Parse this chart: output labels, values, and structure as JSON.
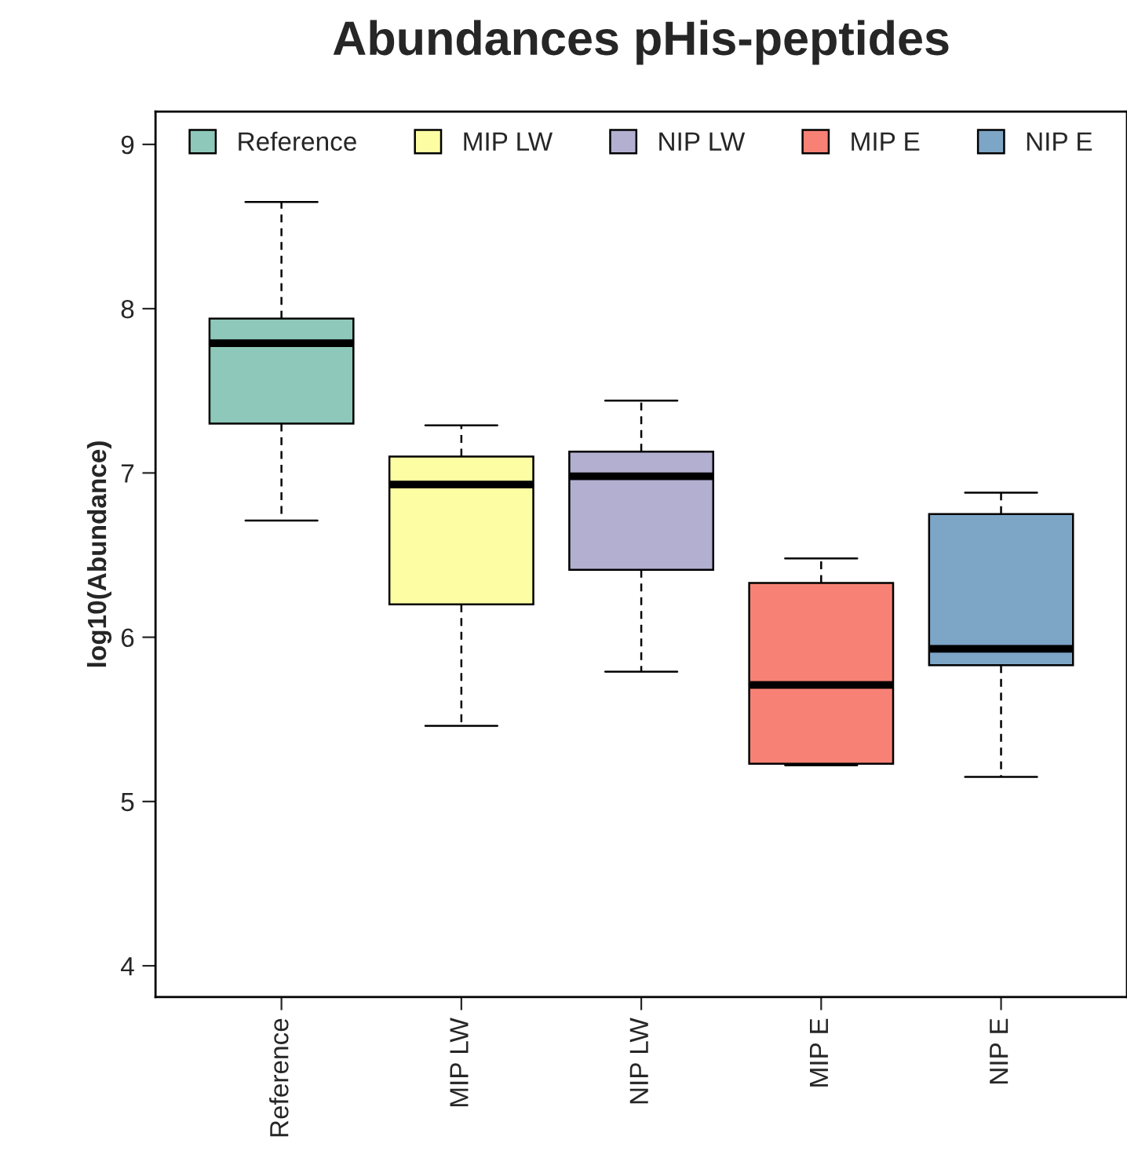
{
  "chart_data": {
    "type": "box",
    "title": "Abundances pHis-peptides",
    "ylabel": "log10(Abundance)",
    "categories": [
      "Reference",
      "MIP LW",
      "NIP LW",
      "MIP E",
      "NIP E"
    ],
    "series": [
      {
        "name": "Reference",
        "color": "#8dc8ba",
        "boxes": [
          {
            "low": 6.71,
            "q1": 7.3,
            "median": 7.79,
            "q3": 7.94,
            "high": 8.65
          },
          null,
          null,
          null,
          null
        ]
      },
      {
        "name": "MIP LW",
        "color": "#fdfda3",
        "boxes": [
          null,
          {
            "low": 5.46,
            "q1": 6.2,
            "median": 6.93,
            "q3": 7.1,
            "high": 7.29
          },
          null,
          null,
          null
        ]
      },
      {
        "name": "NIP LW",
        "color": "#b2afd0",
        "boxes": [
          null,
          null,
          {
            "low": 5.79,
            "q1": 6.41,
            "median": 6.98,
            "q3": 7.13,
            "high": 7.44
          },
          null,
          null
        ]
      },
      {
        "name": "MIP E",
        "color": "#f88175",
        "boxes": [
          null,
          null,
          null,
          {
            "low": 5.22,
            "q1": 5.23,
            "median": 5.71,
            "q3": 6.33,
            "high": 6.48
          },
          null
        ]
      },
      {
        "name": "NIP E",
        "color": "#7da5c6",
        "boxes": [
          null,
          null,
          null,
          null,
          {
            "low": 5.15,
            "q1": 5.83,
            "median": 5.93,
            "q3": 6.75,
            "high": 6.88
          }
        ]
      }
    ],
    "ylim": [
      3.81,
      9.2
    ],
    "yticks": [
      4,
      5,
      6,
      7,
      8,
      9
    ],
    "grid": false,
    "legend": "top"
  }
}
